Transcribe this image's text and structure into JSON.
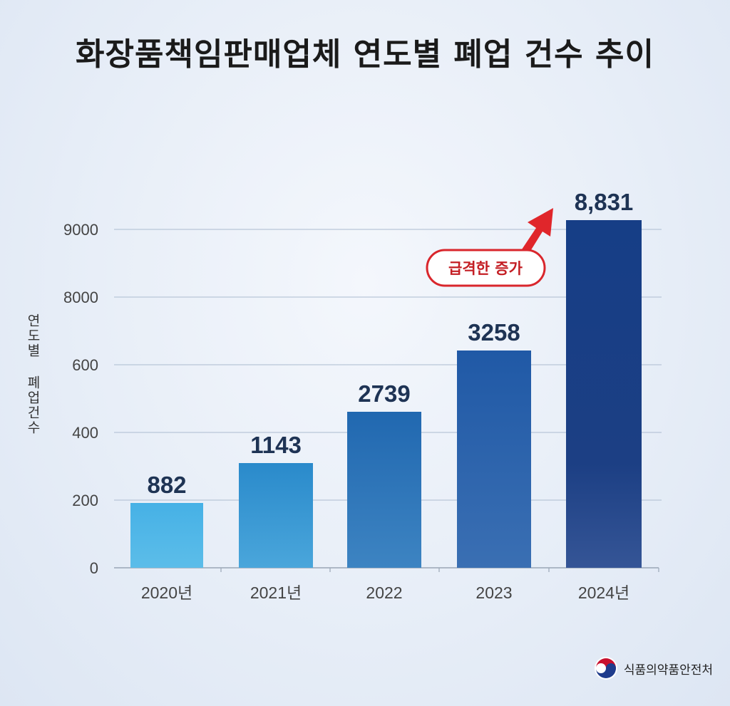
{
  "title": "화장품책임판매업체 연도별 폐업 건수 추이",
  "colors": {
    "bar_light": "#4bb4e6",
    "bar_dark": "#1b3f85",
    "label": "#1e3354",
    "arrow": "#e0262b",
    "callout_border": "#d9262c",
    "callout_text": "#c41e24"
  },
  "annotation": {
    "text": "급격한 증가",
    "arrow_icon": "up-right-arrow-icon"
  },
  "chart_data": {
    "type": "bar",
    "categories": [
      "2020년",
      "2021년",
      "2022",
      "2023",
      "2024년"
    ],
    "values": [
      882,
      1143,
      2739,
      3258,
      8831
    ],
    "data_labels": [
      "882",
      "1143",
      "2739",
      "3258",
      "8,831"
    ],
    "yticks": [
      "0",
      "200",
      "400",
      "600",
      "8000",
      "9000"
    ],
    "ylabel": "연도별 폐업건수",
    "xlabel": "",
    "grid": true,
    "legend": "none"
  },
  "footer": {
    "org": "식품의약품안전처",
    "logo_icon": "taegeuk-icon"
  }
}
